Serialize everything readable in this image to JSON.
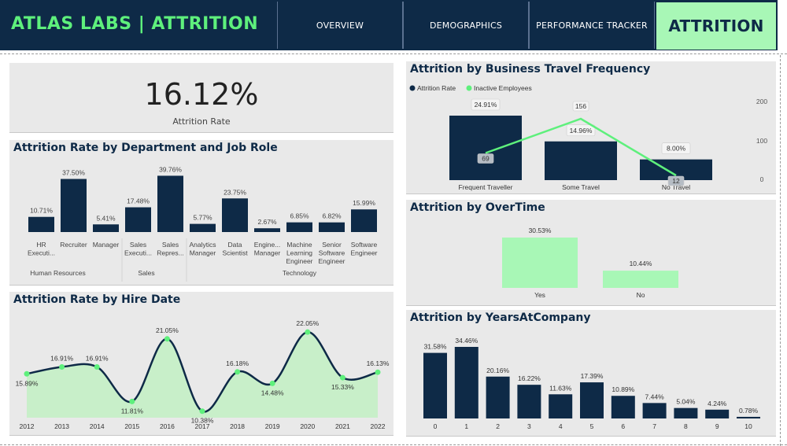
{
  "header": {
    "brand": "ATLAS LABS | ATTRITION",
    "nav": [
      "OVERVIEW",
      "DEMOGRAPHICS",
      "PERFORMANCE TRACKER",
      "ATTRITION"
    ]
  },
  "kpi": {
    "value": "16.12%",
    "label": "Attrition Rate"
  },
  "colors": {
    "navy": "#0e2a47",
    "green": "#5ef07c",
    "mint": "#a8f7b6",
    "card": "#e9e9e9"
  },
  "chart_data": [
    {
      "id": "dept",
      "type": "bar",
      "title": "Attrition Rate by Department and Job Role",
      "categories": [
        "HR Executi...",
        "Recruiter",
        "Manager",
        "Sales Executi...",
        "Sales Repres...",
        "Analytics Manager",
        "Data Scientist",
        "Engine... Manager",
        "Machine Learning Engineer",
        "Senior Software Engineer",
        "Software Engineer"
      ],
      "values": [
        10.71,
        37.5,
        5.41,
        17.48,
        39.76,
        5.77,
        23.75,
        2.67,
        6.85,
        6.82,
        15.99
      ],
      "labels": [
        "10.71%",
        "37.50%",
        "5.41%",
        "17.48%",
        "39.76%",
        "5.77%",
        "23.75%",
        "2.67%",
        "6.85%",
        "6.82%",
        "15.99%"
      ],
      "groups": [
        "Human Resources",
        "Sales",
        "Technology"
      ],
      "ylim": [
        0,
        40
      ]
    },
    {
      "id": "hire",
      "type": "area",
      "title": "Attrition Rate by Hire Date",
      "x": [
        "2012",
        "2013",
        "2014",
        "2015",
        "2016",
        "2017",
        "2018",
        "2019",
        "2020",
        "2021",
        "2022"
      ],
      "values": [
        15.89,
        16.91,
        16.91,
        11.81,
        21.05,
        10.38,
        16.18,
        14.48,
        22.05,
        15.33,
        16.13
      ],
      "labels": [
        "15.89%",
        "16.91%",
        "16.91%",
        "11.81%",
        "21.05%",
        "10.38%",
        "16.18%",
        "14.48%",
        "22.05%",
        "15.33%",
        "16.13%"
      ],
      "ylim": [
        10,
        23
      ]
    },
    {
      "id": "travel",
      "type": "bar",
      "title": "Attrition by Business Travel Frequency",
      "legend": [
        "Attrition Rate",
        "Inactive Employees"
      ],
      "categories": [
        "Frequent Traveller",
        "Some Travel",
        "No Travel"
      ],
      "series": [
        {
          "name": "Attrition Rate",
          "values": [
            24.91,
            14.96,
            8.0
          ],
          "labels": [
            "24.91%",
            "14.96%",
            "8.00%"
          ]
        },
        {
          "name": "Inactive Employees",
          "values": [
            69,
            156,
            12
          ],
          "labels": [
            "69",
            "156",
            "12"
          ]
        }
      ],
      "y2ticks": [
        "200",
        "100",
        "0"
      ],
      "ylim": [
        0,
        30
      ],
      "y2lim": [
        0,
        200
      ]
    },
    {
      "id": "overtime",
      "type": "bar",
      "title": "Attrition by OverTime",
      "categories": [
        "Yes",
        "No"
      ],
      "values": [
        30.53,
        10.44
      ],
      "labels": [
        "30.53%",
        "10.44%"
      ],
      "ylim": [
        0,
        32
      ]
    },
    {
      "id": "years",
      "type": "bar",
      "title": "Attrition by YearsAtCompany",
      "categories": [
        "0",
        "1",
        "2",
        "3",
        "4",
        "5",
        "6",
        "7",
        "8",
        "9",
        "10"
      ],
      "values": [
        31.58,
        34.46,
        20.16,
        16.22,
        11.63,
        17.39,
        10.89,
        7.44,
        5.04,
        4.24,
        0.78
      ],
      "labels": [
        "31.58%",
        "34.46%",
        "20.16%",
        "16.22%",
        "11.63%",
        "17.39%",
        "10.89%",
        "7.44%",
        "5.04%",
        "4.24%",
        "0.78%"
      ],
      "ylim": [
        0,
        35
      ]
    }
  ]
}
